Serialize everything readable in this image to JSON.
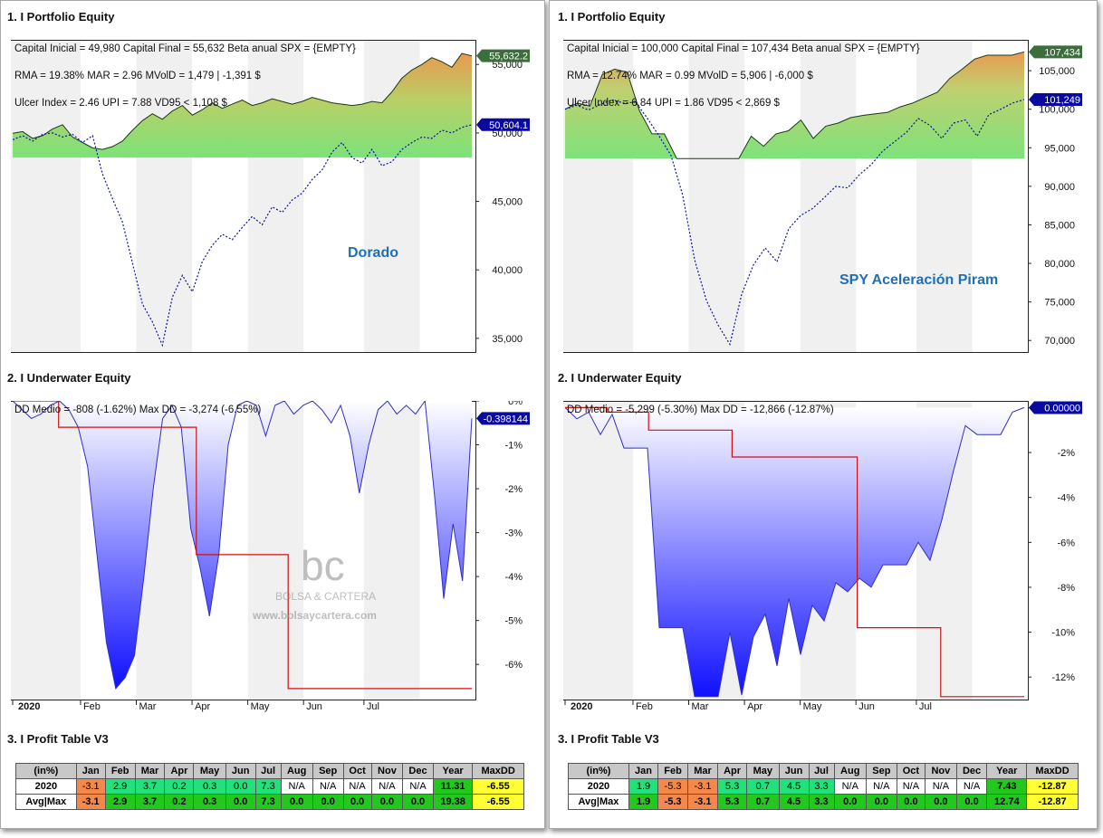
{
  "panels": [
    {
      "side": "left",
      "equity": {
        "title": "1. I Portfolio Equity",
        "stats": [
          "Capital Inicial = 49,980  Capital Final = 55,632  Beta anual SPX = {EMPTY}",
          "RMA = 19.38%   MAR = 2.96  MVolD = 1,479 | -1,391 $",
          "Ulcer Index = 2.46   UPI = 7.88   VD95 < 1,108 $"
        ],
        "label": "Dorado",
        "labels_tag": {
          "final": "55,632.2",
          "benchmark": "50,604.1"
        }
      },
      "underwater": {
        "title": "2. I Underwater Equity",
        "stats": "DD Medio = -808 (-1.62%)        Max DD = -3,274 (-6.55%)",
        "tag": "-0.398144"
      },
      "watermark": {
        "brand": "BOLSA & CARTERA",
        "url": "www.bolsaycartera.com"
      },
      "profit": {
        "title": "3. I Profit Table V3",
        "header": [
          "(in%)",
          "Jan",
          "Feb",
          "Mar",
          "Apr",
          "May",
          "Jun",
          "Jul",
          "Aug",
          "Sep",
          "Oct",
          "Nov",
          "Dec",
          "Year",
          "MaxDD"
        ],
        "rows": [
          {
            "label": "2020",
            "cells": [
              "-3.1",
              "2.9",
              "3.7",
              "0.2",
              "0.3",
              "0.0",
              "7.3",
              "N/A",
              "N/A",
              "N/A",
              "N/A",
              "N/A",
              "11.31",
              "-6.55"
            ]
          },
          {
            "label": "Avg|Max",
            "cells": [
              "-3.1",
              "2.9",
              "3.7",
              "0.2",
              "0.3",
              "0.0",
              "7.3",
              "0.0",
              "0.0",
              "0.0",
              "0.0",
              "0.0",
              "19.38",
              "-6.55"
            ]
          }
        ]
      }
    },
    {
      "side": "right",
      "equity": {
        "title": "1. I Portfolio Equity",
        "stats": [
          "Capital Inicial = 100,000  Capital Final = 107,434   Beta anual SPX = {EMPTY}",
          "RMA = 12.74%   MAR = 0.99   MVolD = 5,906 | -6,000 $",
          "Ulcer Index = 6.84   UPI = 1.86   VD95 < 2,869 $"
        ],
        "label": "SPY Aceleración Piram",
        "labels_tag": {
          "final": "107,434",
          "benchmark": "101,249"
        }
      },
      "underwater": {
        "title": "2. I Underwater Equity",
        "stats": "DD Medio = -5,299 (-5.30%)        Max DD = -12,866 (-12.87%)",
        "tag": "0.00000"
      },
      "profit": {
        "title": "3. I Profit Table V3",
        "header": [
          "(in%)",
          "Jan",
          "Feb",
          "Mar",
          "Apr",
          "May",
          "Jun",
          "Jul",
          "Aug",
          "Sep",
          "Oct",
          "Nov",
          "Dec",
          "Year",
          "MaxDD"
        ],
        "rows": [
          {
            "label": "2020",
            "cells": [
              "1.9",
              "-5.3",
              "-3.1",
              "5.3",
              "0.7",
              "4.5",
              "3.3",
              "N/A",
              "N/A",
              "N/A",
              "N/A",
              "N/A",
              "7.43",
              "-12.87"
            ]
          },
          {
            "label": "Avg|Max",
            "cells": [
              "1.9",
              "-5.3",
              "-3.1",
              "5.3",
              "0.7",
              "4.5",
              "3.3",
              "0.0",
              "0.0",
              "0.0",
              "0.0",
              "0.0",
              "12.74",
              "-12.87"
            ]
          }
        ]
      }
    }
  ],
  "colors": {
    "benchmark_line": "#0a14a0",
    "equity_fill_low": "#7ee27a",
    "equity_fill_high": "#e89a50",
    "underwater_fill_top": "#ffffff",
    "underwater_fill_bottom": "#1010ff",
    "maxdd_line": "#d01010",
    "tag_final": "#3b6e3b",
    "tag_benchmark": "#0a0aa0",
    "positive": "#22e07a",
    "negative": "#f4884a",
    "year_positive": "#22c81e",
    "maxdd": "#ffff33",
    "na": "#ffffff"
  },
  "chart_data": [
    {
      "type": "area",
      "name": "left-equity",
      "x_ticks": [
        "2020",
        "Feb",
        "Mar",
        "Apr",
        "May",
        "Jun",
        "Jul"
      ],
      "y_ticks": [
        "35,000",
        "40,000",
        "45,000",
        "50,000",
        "55,000"
      ],
      "ylim": [
        34000,
        56800
      ],
      "series": [
        {
          "values": [
            49980,
            50100,
            49600,
            49800,
            50300,
            50600,
            49700,
            49300,
            48900,
            48800,
            49000,
            49400,
            50200,
            50900,
            51400,
            51000,
            51600,
            52000,
            51300,
            51700,
            52200,
            51800,
            52100,
            52400,
            52000,
            52200,
            52500,
            52300,
            52100,
            52300,
            52600,
            52400,
            52200,
            52100,
            52000,
            52100,
            52300,
            52200,
            53000,
            54000,
            54600,
            55000,
            55500,
            55200,
            54800,
            55800,
            55632
          ]
        },
        {
          "values": [
            49500,
            49800,
            49400,
            49900,
            50000,
            49700,
            49900,
            49300,
            49800,
            47000,
            45200,
            43500,
            40500,
            37500,
            36200,
            34500,
            38000,
            39600,
            38400,
            40600,
            41800,
            42600,
            42200,
            43100,
            43900,
            43300,
            44600,
            44200,
            45100,
            45600,
            46600,
            47300,
            48600,
            49300,
            48200,
            47800,
            48800,
            47600,
            47900,
            48800,
            49300,
            49700,
            49600,
            50200,
            50000,
            50400,
            50604
          ]
        }
      ]
    },
    {
      "type": "area",
      "name": "left-underwater",
      "x_ticks": [
        "2020",
        "Feb",
        "Mar",
        "Apr",
        "May",
        "Jun",
        "Jul"
      ],
      "y_ticks": [
        "0%",
        "-1%",
        "-2%",
        "-3%",
        "-4%",
        "-5%",
        "-6%"
      ],
      "ylim": [
        -6.8,
        0
      ],
      "series": [
        {
          "values": [
            0,
            -0.2,
            -0.4,
            -0.3,
            -0.1,
            0,
            -0.2,
            -0.6,
            -1.5,
            -3.5,
            -5.5,
            -6.55,
            -6.3,
            -5.8,
            -4.0,
            -2.0,
            -0.4,
            -0.1,
            -0.6,
            -2.9,
            -3.8,
            -4.9,
            -3.5,
            -1.0,
            -0.1,
            0,
            -0.1,
            -0.8,
            -0.1,
            0,
            -0.3,
            -0.1,
            0,
            -0.2,
            -0.5,
            -0.1,
            -0.8,
            -2.1,
            -1.0,
            -0.2,
            0,
            -0.3,
            -0.1,
            -0.3,
            0,
            -2.1,
            -4.5,
            -2.8,
            -4.1,
            -0.4
          ]
        },
        {
          "values": [
            0,
            -0.6,
            -0.6,
            -0.6,
            -3.5,
            -3.5,
            -6.55,
            -6.55,
            -6.55,
            -6.55,
            -6.55
          ]
        }
      ]
    },
    {
      "type": "area",
      "name": "right-equity",
      "x_ticks": [
        "2020",
        "Feb",
        "Mar",
        "Apr",
        "May",
        "Jun",
        "Jul"
      ],
      "y_ticks": [
        "70,000",
        "75,000",
        "80,000",
        "85,000",
        "90,000",
        "95,000",
        "100,000",
        "105,000"
      ],
      "ylim": [
        68500,
        109000
      ],
      "series": [
        {
          "values": [
            100000,
            100800,
            100400,
            104500,
            105200,
            104800,
            99800,
            96800,
            96800,
            93600,
            93600,
            93600,
            93600,
            93600,
            93600,
            96500,
            95200,
            96800,
            97200,
            98600,
            96200,
            97800,
            98200,
            98900,
            99200,
            99400,
            99600,
            100300,
            100800,
            101500,
            102200,
            104000,
            105200,
            106500,
            107000,
            107000,
            107000,
            107434
          ]
        },
        {
          "values": [
            100000,
            100500,
            99900,
            100600,
            101200,
            100800,
            100900,
            98800,
            96500,
            94000,
            88800,
            80500,
            75200,
            72000,
            69500,
            76000,
            79800,
            82000,
            80200,
            84500,
            86200,
            87100,
            88500,
            90000,
            89800,
            91500,
            92800,
            94600,
            95800,
            97000,
            98800,
            97900,
            96200,
            98200,
            98600,
            96500,
            99300,
            100000,
            100800,
            101249
          ]
        }
      ]
    },
    {
      "type": "area",
      "name": "right-underwater",
      "x_ticks": [
        "2020",
        "Feb",
        "Mar",
        "Apr",
        "May",
        "Jun",
        "Jul"
      ],
      "y_ticks": [
        "0.00000",
        "-2%",
        "-4%",
        "-6%",
        "-8%",
        "-10%",
        "-12%"
      ],
      "ylim": [
        -13,
        0.3
      ],
      "series": [
        {
          "values": [
            0,
            -0.5,
            -0.2,
            -1.2,
            -0.3,
            -1.8,
            -1.8,
            -1.8,
            -9.8,
            -9.8,
            -9.8,
            -12.87,
            -12.87,
            -12.87,
            -10.0,
            -12.8,
            -10.2,
            -9.2,
            -11.5,
            -8.5,
            -11.0,
            -8.8,
            -9.5,
            -7.8,
            -8.2,
            -7.6,
            -8.0,
            -7.0,
            -7.0,
            -7.0,
            -6.0,
            -6.8,
            -5.0,
            -2.8,
            -0.8,
            -1.2,
            -1.2,
            -1.2,
            -0.2,
            0
          ]
        },
        {
          "values": [
            0,
            -0.2,
            -1.0,
            -1.0,
            -2.2,
            -2.2,
            -2.2,
            -9.8,
            -9.8,
            -12.87,
            -12.87,
            -12.87
          ]
        }
      ]
    }
  ]
}
